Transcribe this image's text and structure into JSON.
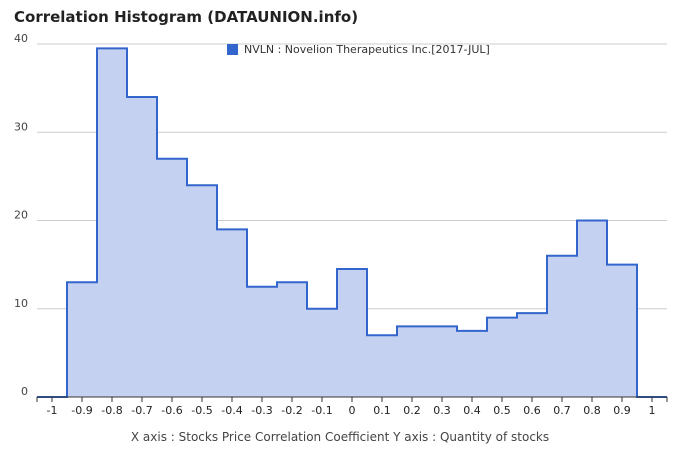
{
  "chart_data": {
    "type": "area",
    "title": "Correlation Histogram (DATAUNION.info)",
    "caption": "X axis : Stocks Price Correlation Coefficient  Y axis : Quantity of stocks",
    "legend": {
      "label": "NVLN : Novelion Therapeutics Inc.[2017-JUL]",
      "placement": "top-center"
    },
    "series": [
      {
        "name": "NVLN : Novelion Therapeutics Inc.[2017-JUL]",
        "color": "#3366cc",
        "fill": "#c5d1f0",
        "steps": [
          {
            "x0": -1.05,
            "x1": -0.95,
            "y": 0
          },
          {
            "x0": -0.95,
            "x1": -0.85,
            "y": 13
          },
          {
            "x0": -0.85,
            "x1": -0.75,
            "y": 39.5
          },
          {
            "x0": -0.75,
            "x1": -0.65,
            "y": 34
          },
          {
            "x0": -0.65,
            "x1": -0.55,
            "y": 27
          },
          {
            "x0": -0.55,
            "x1": -0.45,
            "y": 24
          },
          {
            "x0": -0.45,
            "x1": -0.35,
            "y": 19
          },
          {
            "x0": -0.35,
            "x1": -0.25,
            "y": 12.5
          },
          {
            "x0": -0.25,
            "x1": -0.15,
            "y": 13
          },
          {
            "x0": -0.15,
            "x1": -0.05,
            "y": 10
          },
          {
            "x0": -0.05,
            "x1": 0.05,
            "y": 14.5
          },
          {
            "x0": 0.05,
            "x1": 0.15,
            "y": 7
          },
          {
            "x0": 0.15,
            "x1": 0.25,
            "y": 8
          },
          {
            "x0": 0.25,
            "x1": 0.35,
            "y": 8
          },
          {
            "x0": 0.35,
            "x1": 0.45,
            "y": 7.5
          },
          {
            "x0": 0.45,
            "x1": 0.55,
            "y": 9
          },
          {
            "x0": 0.55,
            "x1": 0.65,
            "y": 9.5
          },
          {
            "x0": 0.65,
            "x1": 0.75,
            "y": 16
          },
          {
            "x0": 0.75,
            "x1": 0.85,
            "y": 20
          },
          {
            "x0": 0.85,
            "x1": 0.95,
            "y": 15
          },
          {
            "x0": 0.95,
            "x1": 1.05,
            "y": 0
          }
        ]
      }
    ],
    "x_ticks": [
      "-1",
      "-0.9",
      "-0.8",
      "-0.7",
      "-0.6",
      "-0.5",
      "-0.4",
      "-0.3",
      "-0.2",
      "-0.1",
      "0",
      "0.1",
      "0.2",
      "0.3",
      "0.4",
      "0.5",
      "0.6",
      "0.7",
      "0.8",
      "0.9",
      "1"
    ],
    "y_ticks": [
      {
        "value": 0,
        "label": "0"
      },
      {
        "value": 10,
        "label": "10"
      },
      {
        "value": 20,
        "label": "20"
      },
      {
        "value": 30,
        "label": "30"
      },
      {
        "value": 40,
        "label": "40"
      }
    ],
    "xlim": [
      -1.05,
      1.05
    ],
    "ylim": [
      0,
      40
    ],
    "grid": true
  }
}
